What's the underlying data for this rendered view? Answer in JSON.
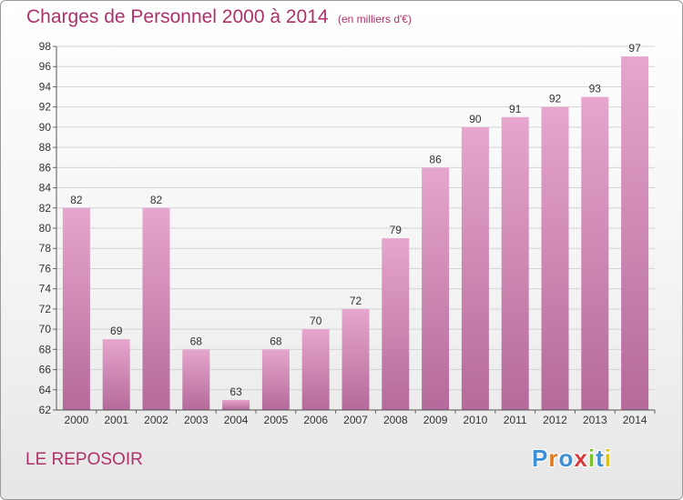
{
  "header": {
    "title": "Charges de Personnel 2000 à 2014",
    "subtitle": "(en milliers d'€)"
  },
  "footer": {
    "commune": "LE REPOSOIR",
    "logo": "Proxiti"
  },
  "colors": {
    "accent": "#b0306a",
    "bar_top": "#e6a6cd",
    "bar_bottom": "#b46a9a",
    "logo_letters": [
      "#3a8fd6",
      "#e07a1f",
      "#3a8fd6",
      "#d63a3a",
      "#7bbf2a",
      "#3a8fd6",
      "#e0c21f"
    ]
  },
  "chart_data": {
    "type": "bar",
    "title": "Charges de Personnel 2000 à 2014",
    "subtitle": "(en milliers d'€)",
    "categories": [
      "2000",
      "2001",
      "2002",
      "2003",
      "2004",
      "2005",
      "2006",
      "2007",
      "2008",
      "2009",
      "2010",
      "2011",
      "2012",
      "2013",
      "2014"
    ],
    "values": [
      82,
      69,
      82,
      68,
      63,
      68,
      70,
      72,
      79,
      86,
      90,
      91,
      92,
      93,
      97
    ],
    "ylim": [
      62,
      98
    ],
    "yticks": [
      62,
      64,
      66,
      68,
      70,
      72,
      74,
      76,
      78,
      80,
      82,
      84,
      86,
      88,
      90,
      92,
      94,
      96,
      98
    ],
    "grid": true,
    "legend": "none"
  }
}
